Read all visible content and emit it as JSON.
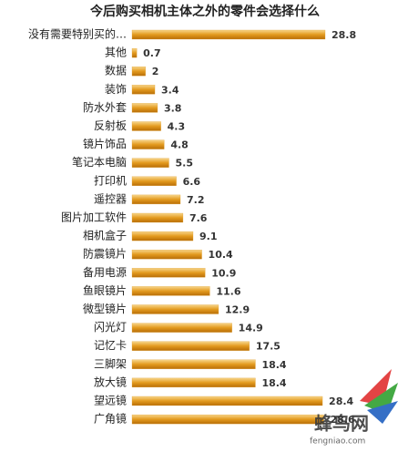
{
  "chart_data": {
    "type": "bar",
    "orientation": "horizontal",
    "title": "今后购买相机主体之外的零件会选择什么",
    "categories": [
      "没有需要特别买的…",
      "其他",
      "数据",
      "装饰",
      "防水外套",
      "反射板",
      "镜片饰品",
      "笔记本电脑",
      "打印机",
      "遥控器",
      "图片加工软件",
      "相机盒子",
      "防震镜片",
      "备用电源",
      "鱼眼镜片",
      "微型镜片",
      "闪光灯",
      "记忆卡",
      "三脚架",
      "放大镜",
      "望远镜",
      "广角镜"
    ],
    "values": [
      28.8,
      0.7,
      2,
      3.4,
      3.8,
      4.3,
      4.8,
      5.5,
      6.6,
      7.2,
      7.6,
      9.1,
      10.4,
      10.9,
      11.6,
      12.9,
      14.9,
      17.5,
      18.4,
      18.4,
      28.4,
      28.6
    ],
    "color": "#e0a030",
    "watermark": "蜂鸟网",
    "watermark_url": "fengniao.com"
  }
}
